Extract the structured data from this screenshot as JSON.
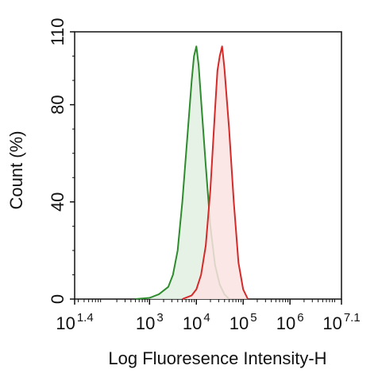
{
  "chart_data": {
    "type": "area",
    "title": "",
    "xlabel": "Log Fluoresence Intensity-H",
    "ylabel": "Count  (%)",
    "x_scale": "log10",
    "xlim": [
      1.4,
      7.1
    ],
    "ylim": [
      0,
      110
    ],
    "y_ticks": [
      0,
      40,
      80,
      110
    ],
    "x_ticks": [
      {
        "base": "10",
        "exp": "1.4",
        "log": 1.4
      },
      {
        "base": "10",
        "exp": "3",
        "log": 3
      },
      {
        "base": "10",
        "exp": "4",
        "log": 4
      },
      {
        "base": "10",
        "exp": "5",
        "log": 5
      },
      {
        "base": "10",
        "exp": "6",
        "log": 6
      },
      {
        "base": "10",
        "exp": "7.1",
        "log": 7.1
      }
    ],
    "grid": false,
    "legend": "none",
    "series": [
      {
        "color": "#2e8b2e",
        "fill": "#e3f0e3",
        "log_x": [
          2.7,
          3.0,
          3.2,
          3.4,
          3.5,
          3.6,
          3.7,
          3.8,
          3.9,
          3.95,
          4.0,
          4.05,
          4.1,
          4.2,
          4.3,
          4.4,
          4.5,
          4.6,
          4.7
        ],
        "y": [
          0,
          0.5,
          2,
          5,
          10,
          20,
          40,
          65,
          90,
          100,
          104,
          96,
          82,
          55,
          30,
          14,
          6,
          2,
          0
        ]
      },
      {
        "color": "#d42a2a",
        "fill": "#fbe3e3",
        "log_x": [
          3.7,
          3.9,
          4.0,
          4.1,
          4.2,
          4.3,
          4.4,
          4.45,
          4.5,
          4.55,
          4.6,
          4.7,
          4.8,
          4.9,
          5.0,
          5.1
        ],
        "y": [
          0,
          1.5,
          4,
          10,
          22,
          45,
          78,
          94,
          100,
          104,
          95,
          70,
          40,
          15,
          4,
          0
        ]
      }
    ]
  }
}
